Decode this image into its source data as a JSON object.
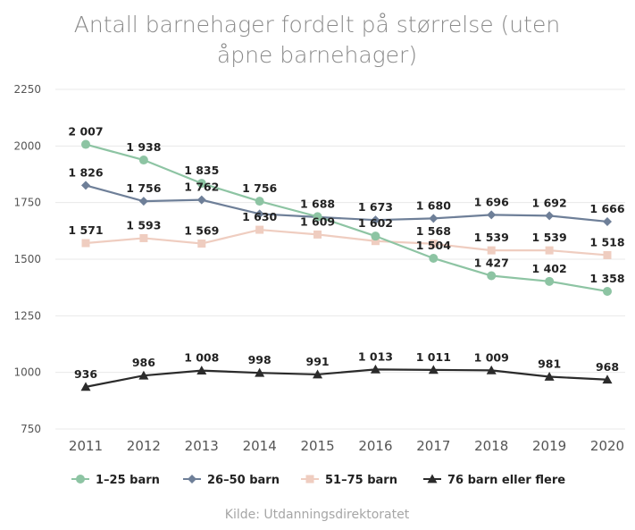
{
  "chart_data": {
    "type": "line",
    "title_lines": [
      "Antall barnehager fordelt på størrelse (uten",
      "åpne barnehager)"
    ],
    "x": [
      "2011",
      "2012",
      "2013",
      "2014",
      "2015",
      "2016",
      "2017",
      "2018",
      "2019",
      "2020"
    ],
    "yticks": [
      "2250",
      "2000",
      "1750",
      "1500",
      "1250",
      "1000",
      "750"
    ],
    "ylim": [
      750,
      2250
    ],
    "grid": true,
    "legend_position": "bottom",
    "series": [
      {
        "name": "1–25 barn",
        "color": "#8dc4a3",
        "marker": "circle",
        "values": [
          2007,
          1938,
          1835,
          1756,
          1688,
          1602,
          1504,
          1427,
          1402,
          1358
        ],
        "labels": [
          "2 007",
          "1 938",
          "1 835",
          "1 756",
          "1 688",
          "1 602",
          "1 504",
          "1 427",
          "1 402",
          "1 358"
        ]
      },
      {
        "name": "26–50 barn",
        "color": "#6e7f98",
        "marker": "diamond",
        "values": [
          1826,
          1756,
          1762,
          1700,
          1686,
          1673,
          1680,
          1696,
          1692,
          1666
        ],
        "labels": [
          "1 826",
          "1 756",
          "1 762",
          "",
          "",
          "1 673",
          "1 680",
          "1 696",
          "1 692",
          "1 666"
        ]
      },
      {
        "name": "51–75 barn",
        "color": "#efcdc0",
        "marker": "square",
        "values": [
          1571,
          1593,
          1569,
          1630,
          1609,
          1580,
          1568,
          1539,
          1539,
          1518
        ],
        "labels": [
          "1 571",
          "1 593",
          "1 569",
          "1 630",
          "1 609",
          "",
          "1 568",
          "1 539",
          "1 539",
          "1 518"
        ]
      },
      {
        "name": "76 barn eller flere",
        "color": "#2b2b2b",
        "marker": "triangle",
        "values": [
          936,
          986,
          1008,
          998,
          991,
          1013,
          1011,
          1009,
          981,
          968
        ],
        "labels": [
          "936",
          "986",
          "1 008",
          "998",
          "991",
          "1 013",
          "1 011",
          "1 009",
          "981",
          "968"
        ]
      }
    ],
    "source": "Kilde: Utdanningsdirektoratet"
  }
}
